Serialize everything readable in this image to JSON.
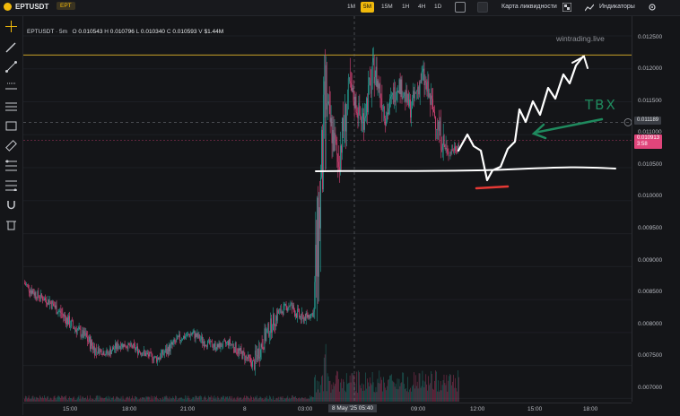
{
  "header": {
    "symbol": "EPTUSDT",
    "badge": "EPT",
    "timeframes": [
      "1M",
      "5M",
      "15M",
      "1H",
      "4H",
      "1D"
    ],
    "active_timeframe": "5M",
    "liquidity_map_label": "Карта ликвидности",
    "indicators_label": "Индикаторы"
  },
  "legend": {
    "symbol_tf": "EPTUSDT · 5m",
    "o_label": "O",
    "o": "0.010543",
    "h_label": "H",
    "h": "0.010796",
    "l_label": "L",
    "l": "0.010340",
    "c_label": "C",
    "c": "0.010593",
    "v_label": "V",
    "v": "$1.44M"
  },
  "watermark": "wintrading.live",
  "annotation_text": "TBX",
  "yaxis": {
    "ticks": [
      "0.012500",
      "0.012000",
      "0.011500",
      "0.011000",
      "0.010500",
      "0.010000",
      "0.009500",
      "0.009000",
      "0.008500",
      "0.008000",
      "0.007500",
      "0.007000"
    ],
    "crosshair_price": "0.011189",
    "last_price": "0.010913",
    "countdown": "3:58"
  },
  "xaxis": {
    "ticks": [
      "15:00",
      "18:00",
      "21:00",
      "8",
      "03:00",
      "09:00",
      "12:00",
      "15:00",
      "18:00"
    ],
    "crosshair_label": "8 May '25 05:40"
  },
  "colors": {
    "up": "#26a69a",
    "down": "#e0457b",
    "resistance": "#c9a227",
    "annotation_white": "#ffffff",
    "annotation_red": "#e53935",
    "annotation_green": "#1f8a5e"
  },
  "chart_data": {
    "type": "candlestick",
    "ylim": [
      0.00695,
      0.0128
    ],
    "resistance_level": 0.01221,
    "price_path": [
      [
        0.00875,
        0.00858
      ],
      [
        0.00858,
        0.00848
      ],
      [
        0.0085,
        0.0083
      ],
      [
        0.00832,
        0.0081
      ],
      [
        0.0081,
        0.00795
      ],
      [
        0.00796,
        0.00772
      ],
      [
        0.00775,
        0.00768
      ],
      [
        0.0077,
        0.00782
      ],
      [
        0.00782,
        0.00778
      ],
      [
        0.00778,
        0.00768
      ],
      [
        0.00768,
        0.0076
      ],
      [
        0.0076,
        0.00775
      ],
      [
        0.00776,
        0.00792
      ],
      [
        0.00792,
        0.00798
      ],
      [
        0.00798,
        0.00785
      ],
      [
        0.00785,
        0.00778
      ],
      [
        0.00778,
        0.00785
      ],
      [
        0.00785,
        0.00768
      ],
      [
        0.00768,
        0.00752
      ],
      [
        0.00752,
        0.00795
      ],
      [
        0.00795,
        0.00828
      ],
      [
        0.00828,
        0.00842
      ],
      [
        0.00842,
        0.0082
      ],
      [
        0.0082,
        0.0083
      ],
      [
        0.0083,
        0.0115
      ],
      [
        0.0115,
        0.0106
      ],
      [
        0.0106,
        0.0117
      ],
      [
        0.0117,
        0.0112
      ],
      [
        0.0112,
        0.012
      ],
      [
        0.012,
        0.0113
      ],
      [
        0.0113,
        0.0118
      ],
      [
        0.0118,
        0.0114
      ],
      [
        0.0114,
        0.0119
      ],
      [
        0.0119,
        0.0113
      ],
      [
        0.0113,
        0.0107
      ],
      [
        0.0107,
        0.01085
      ]
    ]
  }
}
